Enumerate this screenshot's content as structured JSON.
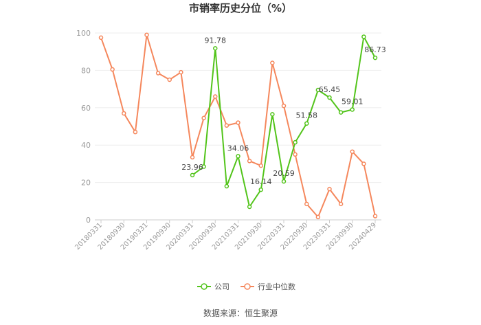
{
  "chart_data": {
    "type": "line",
    "title": "市销率历史分位（%）",
    "source": "数据来源：恒生聚源",
    "ylim": [
      0,
      100
    ],
    "yticks": [
      0,
      20,
      40,
      60,
      80,
      100
    ],
    "x_tick_labels": [
      "20180331",
      "20180930",
      "20190331",
      "20190930",
      "20200331",
      "20200930",
      "20210331",
      "20210930",
      "20220331",
      "20220930",
      "20230331",
      "20230930",
      "20240429"
    ],
    "n_points": 25,
    "grid": true,
    "legend_position": "bottom",
    "series": [
      {
        "name": "公司",
        "color": "#52c41a",
        "start_index": 8,
        "values": [
          23.96,
          28.5,
          91.78,
          18.0,
          34.06,
          7.0,
          16.14,
          56.5,
          20.59,
          41.5,
          51.58,
          69.5,
          65.45,
          57.5,
          59.01,
          98.0,
          86.73
        ],
        "labels": [
          "23.96",
          null,
          "91.78",
          null,
          "34.06",
          null,
          "16.14",
          null,
          "20.59",
          null,
          "51.58",
          null,
          "65.45",
          null,
          "59.01",
          null,
          "86.73"
        ]
      },
      {
        "name": "行业中位数",
        "color": "#f5875c",
        "start_index": 0,
        "values": [
          97.5,
          80.5,
          57.0,
          47.0,
          99.0,
          78.5,
          75.0,
          79.0,
          33.5,
          54.5,
          66.0,
          50.5,
          52.0,
          31.5,
          29.0,
          84.0,
          61.0,
          35.0,
          8.5,
          1.5,
          16.5,
          8.5,
          36.5,
          30.0,
          2.0
        ]
      }
    ]
  }
}
